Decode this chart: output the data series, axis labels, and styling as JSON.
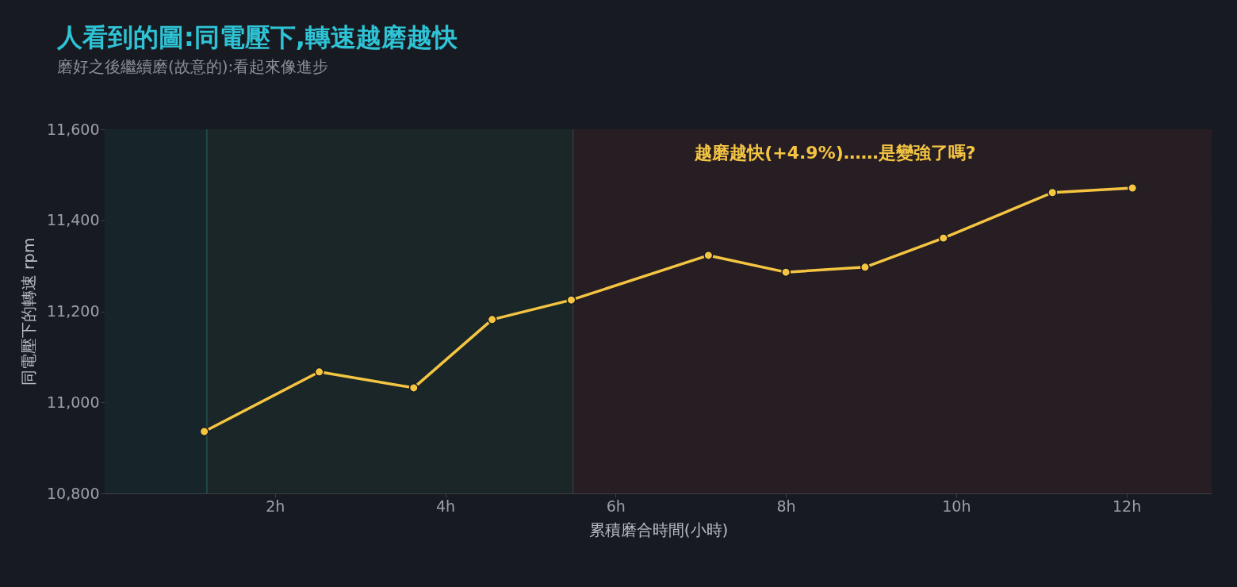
{
  "chart_data": {
    "type": "line",
    "title": "人看到的圖:同電壓下,轉速越磨越快",
    "subtitle": "磨好之後繼續磨(故意的):看起來像進步",
    "xlabel": "累積磨合時間(小時)",
    "ylabel": "同電壓下的轉速 rpm",
    "x": [
      1.17,
      2.52,
      3.63,
      4.55,
      5.48,
      7.09,
      8.0,
      8.93,
      9.85,
      11.13,
      12.07
    ],
    "series": [
      {
        "color": "#f5c542",
        "values": [
          10936,
          11067,
          11032,
          11182,
          11225,
          11323,
          11286,
          11297,
          11361,
          11461,
          11471
        ]
      }
    ],
    "xlim": [
      0,
      13
    ],
    "xticks": [
      {
        "value": 2,
        "label": "2h"
      },
      {
        "value": 4,
        "label": "4h"
      },
      {
        "value": 6,
        "label": "6h"
      },
      {
        "value": 8,
        "label": "8h"
      },
      {
        "value": 10,
        "label": "10h"
      },
      {
        "value": 12,
        "label": "12h"
      }
    ],
    "ylim": [
      10800,
      11600
    ],
    "yticks": [
      {
        "value": 10800,
        "label": "10,800"
      },
      {
        "value": 11000,
        "label": "11,000"
      },
      {
        "value": 11200,
        "label": "11,200"
      },
      {
        "value": 11400,
        "label": "11,400"
      },
      {
        "value": 11600,
        "label": "11,600"
      }
    ],
    "bands": [
      {
        "axis": "x",
        "from": 0,
        "to": 1.2,
        "color": "#17242a"
      },
      {
        "axis": "x",
        "from": 1.2,
        "to": 5.5,
        "color": "#1a2628"
      },
      {
        "axis": "x",
        "from": 5.5,
        "to": 13,
        "color": "#271e24"
      }
    ],
    "ref_lines": [
      {
        "axis": "x",
        "value": 1.2,
        "color": "#1f4a44"
      },
      {
        "axis": "x",
        "value": 5.5,
        "color": "#30353a"
      }
    ],
    "annotations": [
      "越磨越快(+4.9%)……是變強了嗎?"
    ],
    "grid": "y",
    "marker": "circle",
    "line_style": "solid"
  }
}
